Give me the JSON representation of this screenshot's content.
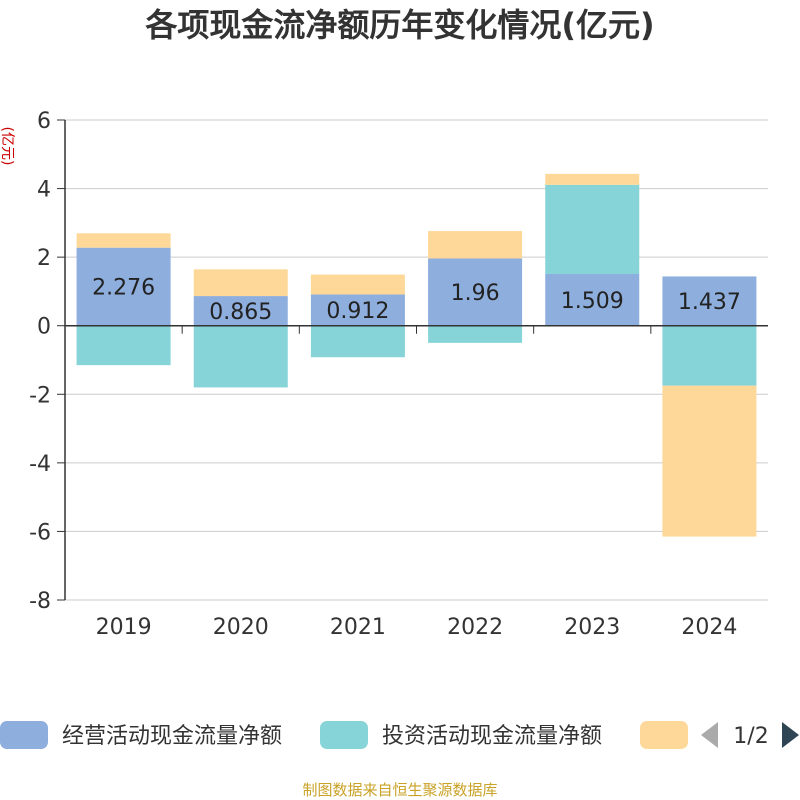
{
  "chart_data": {
    "type": "bar",
    "stacked": true,
    "title": "各项现金流净额历年变化情况(亿元)",
    "ylabel": "(亿元)",
    "xlabel": "",
    "ylim": [
      -8,
      6
    ],
    "yticks": [
      6,
      4,
      2,
      0,
      -2,
      -4,
      -6,
      -8
    ],
    "grid": true,
    "categories": [
      "2019",
      "2020",
      "2021",
      "2022",
      "2023",
      "2024"
    ],
    "series": [
      {
        "name": "经营活动现金流量净额",
        "color": "#8eaedd",
        "values": [
          2.276,
          0.865,
          0.912,
          1.96,
          1.509,
          1.437
        ],
        "show_labels": true
      },
      {
        "name": "投资活动现金流量净额",
        "color": "#86d4d8",
        "values": [
          -1.15,
          -1.8,
          -0.92,
          -0.5,
          2.6,
          -1.75
        ],
        "show_labels": false
      },
      {
        "name": "",
        "color": "#fdd898",
        "values": [
          0.42,
          0.78,
          0.58,
          0.8,
          0.32,
          -4.4
        ],
        "show_labels": false
      }
    ],
    "legend": {
      "position": "bottom",
      "page": "1/2"
    },
    "source": "制图数据来自恒生聚源数据库"
  }
}
